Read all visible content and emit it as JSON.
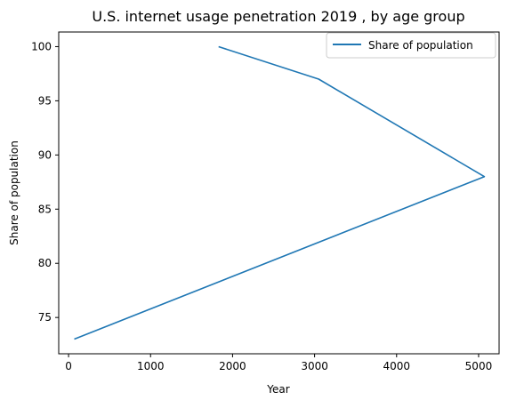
{
  "chart_data": {
    "type": "line",
    "title": "U.S. internet usage penetration 2019 , by age group",
    "xlabel": "Year",
    "ylabel": "Share of population",
    "xlim": [
      -120,
      5250
    ],
    "ylim": [
      71.65,
      101.35
    ],
    "xticks": [
      0,
      1000,
      2000,
      3000,
      4000,
      5000
    ],
    "yticks": [
      75,
      80,
      85,
      90,
      95,
      100
    ],
    "grid": false,
    "legend_position": "top-right",
    "series": [
      {
        "name": "Share of population",
        "color": "#1f77b4",
        "x": [
          1830,
          3050,
          5070,
          70
        ],
        "y": [
          100,
          97,
          88,
          73
        ]
      }
    ]
  }
}
